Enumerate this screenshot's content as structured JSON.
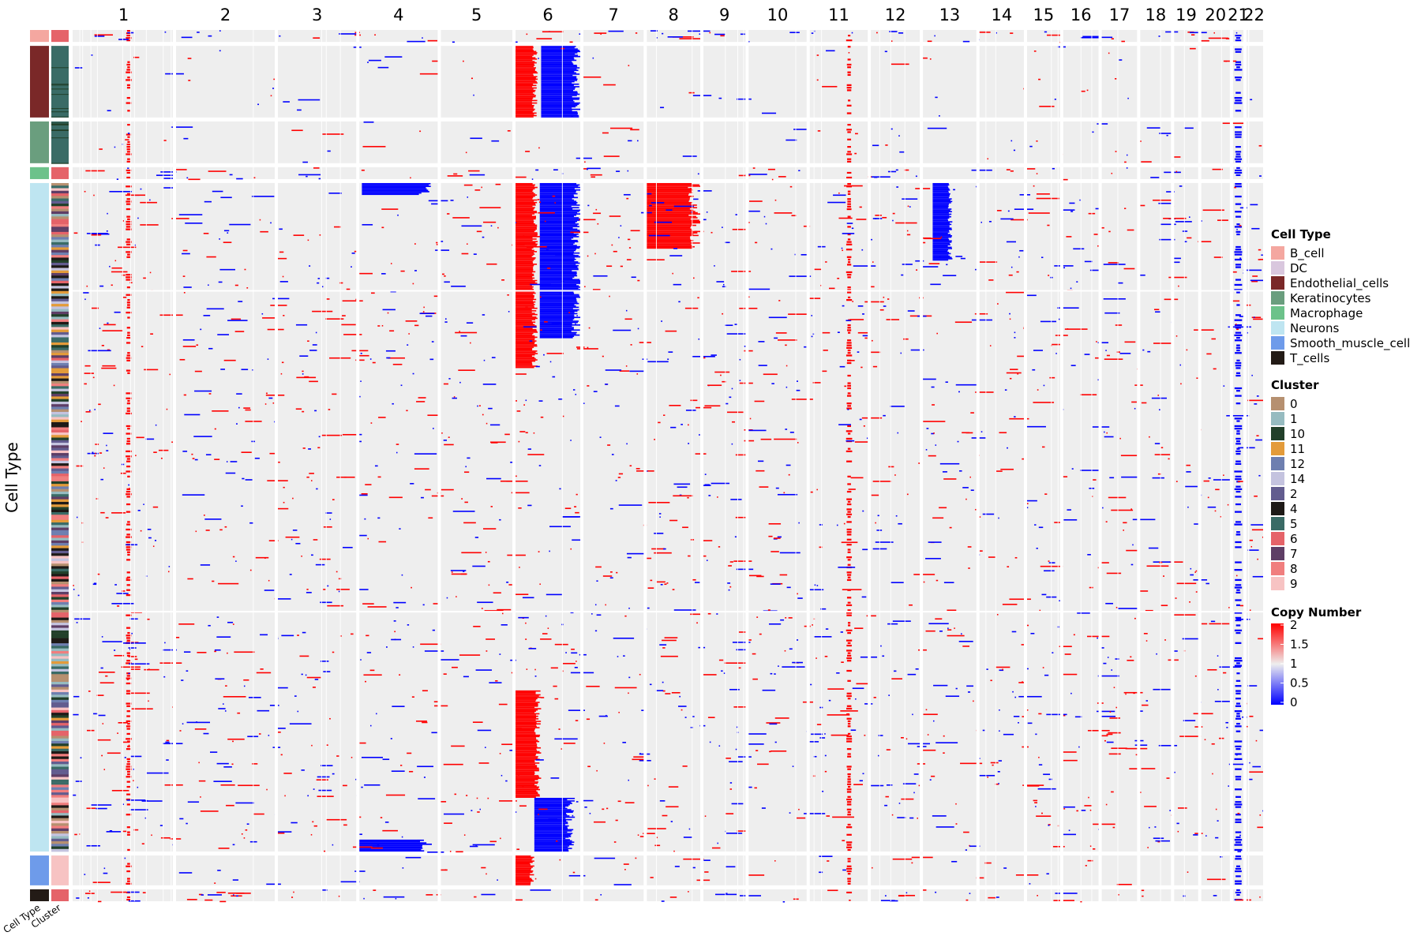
{
  "chart_data": {
    "type": "heatmap",
    "title": "",
    "ylabel": "Cell Type",
    "annotation_labels": [
      "Cell Type",
      "Cluster"
    ],
    "chromosomes": [
      "1",
      "2",
      "3",
      "4",
      "5",
      "6",
      "7",
      "8",
      "9",
      "10",
      "11",
      "12",
      "13",
      "14",
      "15",
      "16",
      "17",
      "18",
      "19",
      "20",
      "21",
      "22"
    ],
    "chromosome_widths": [
      4.5,
      4.5,
      3.6,
      3.6,
      3.3,
      3.0,
      2.8,
      2.5,
      2.0,
      2.7,
      2.7,
      2.3,
      2.5,
      2.1,
      1.6,
      1.7,
      1.7,
      1.5,
      1.2,
      1.4,
      0.6,
      0.8
    ],
    "cell_groups": [
      {
        "cell_type": "B_cell",
        "cluster": "6",
        "rows": 2
      },
      {
        "cell_type": "Endothelial_cells",
        "cluster": "5",
        "rows": 12
      },
      {
        "cell_type": "Keratinocytes",
        "cluster": "5",
        "rows": 7
      },
      {
        "cell_type": "Macrophage",
        "cluster": "6",
        "rows": 2
      },
      {
        "cell_type": "Neurons",
        "cluster": "mixed",
        "rows": 112
      },
      {
        "cell_type": "Smooth_muscle_cell",
        "cluster": "9",
        "rows": 5
      },
      {
        "cell_type": "T_cells",
        "cluster": "6",
        "rows": 2
      }
    ],
    "neuron_subclusters": [
      "0",
      "1",
      "10",
      "11",
      "12",
      "14",
      "2",
      "4",
      "5",
      "6",
      "7",
      "8",
      "9"
    ],
    "legend_cell_type": {
      "title": "Cell Type",
      "items": [
        {
          "label": "B_cell",
          "color": "#F4A7A0"
        },
        {
          "label": "DC",
          "color": "#D9C7DE"
        },
        {
          "label": "Endothelial_cells",
          "color": "#7A2828"
        },
        {
          "label": "Keratinocytes",
          "color": "#6A9E7E"
        },
        {
          "label": "Macrophage",
          "color": "#6CC28A"
        },
        {
          "label": "Neurons",
          "color": "#BEE5F1"
        },
        {
          "label": "Smooth_muscle_cell",
          "color": "#6E9BEA"
        },
        {
          "label": "T_cells",
          "color": "#231B16"
        }
      ]
    },
    "legend_cluster": {
      "title": "Cluster",
      "items": [
        {
          "label": "0",
          "color": "#B69070"
        },
        {
          "label": "1",
          "color": "#96BBC0"
        },
        {
          "label": "10",
          "color": "#22402A"
        },
        {
          "label": "11",
          "color": "#E39B3A"
        },
        {
          "label": "12",
          "color": "#6E7FB0"
        },
        {
          "label": "14",
          "color": "#C4C3DF"
        },
        {
          "label": "2",
          "color": "#625C8F"
        },
        {
          "label": "4",
          "color": "#1E1A17"
        },
        {
          "label": "5",
          "color": "#3A6B66"
        },
        {
          "label": "6",
          "color": "#E56369"
        },
        {
          "label": "7",
          "color": "#5E3E66"
        },
        {
          "label": "8",
          "color": "#F07E7E"
        },
        {
          "label": "9",
          "color": "#F7C3C3"
        }
      ]
    },
    "legend_copy_number": {
      "title": "Copy Number",
      "ticks": [
        "2",
        "1.5",
        "1",
        "0.5",
        "0"
      ],
      "range": [
        0,
        2
      ],
      "colors": {
        "high": "#FF0000",
        "mid": "#EEEEEE",
        "low": "#0000FF"
      }
    },
    "cnv_events": [
      {
        "chr": "1",
        "from": 0.52,
        "to": 0.58,
        "group": "all",
        "value": 2
      },
      {
        "chr": "6",
        "from": 0.0,
        "to": 0.35,
        "group": "Endothelial_cells",
        "value": 2
      },
      {
        "chr": "6",
        "from": 0.4,
        "to": 1.0,
        "group": "Endothelial_cells",
        "value": 0
      },
      {
        "chr": "6",
        "from": 0.0,
        "to": 0.35,
        "group": "Neurons",
        "rows": [
          0,
          30
        ],
        "value": 2
      },
      {
        "chr": "6",
        "from": 0.38,
        "to": 1.0,
        "group": "Neurons",
        "rows": [
          0,
          25
        ],
        "value": 0
      },
      {
        "chr": "6",
        "from": 0.0,
        "to": 0.4,
        "group": "Neurons",
        "rows": [
          85,
          102
        ],
        "value": 2
      },
      {
        "chr": "6",
        "from": 0.3,
        "to": 0.9,
        "group": "Neurons",
        "rows": [
          103,
          111
        ],
        "value": 0
      },
      {
        "chr": "6",
        "from": 0.0,
        "to": 0.3,
        "group": "Smooth_muscle_cell",
        "value": 2
      },
      {
        "chr": "8",
        "from": 0.0,
        "to": 1.0,
        "group": "Neurons",
        "rows": [
          0,
          10
        ],
        "value": 2
      },
      {
        "chr": "11",
        "from": 0.62,
        "to": 0.72,
        "group": "all",
        "value": 2
      },
      {
        "chr": "13",
        "from": 0.2,
        "to": 0.55,
        "group": "Neurons",
        "rows": [
          0,
          12
        ],
        "value": 0
      },
      {
        "chr": "4",
        "from": 0.05,
        "to": 0.9,
        "group": "Neurons",
        "rows": [
          0,
          1
        ],
        "value": 0
      },
      {
        "chr": "4",
        "from": 0.0,
        "to": 0.95,
        "group": "Neurons",
        "rows": [
          110,
          111
        ],
        "value": 0
      },
      {
        "chr": "21",
        "from": 0.2,
        "to": 0.8,
        "group": "all",
        "value": 0
      }
    ]
  }
}
